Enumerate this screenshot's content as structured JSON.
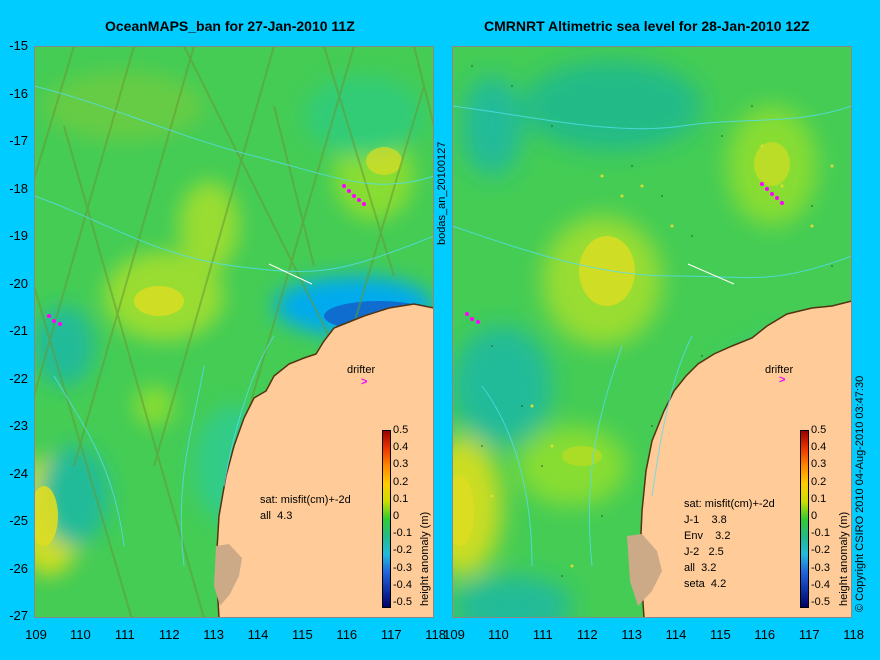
{
  "panels": [
    {
      "title": "OceanMAPS_ban for 27-Jan-2010 11Z",
      "drifter_label": "drifter",
      "legend": [
        "sat: misfit(cm)+-2d",
        "all  4.3"
      ],
      "colorbar_label": "height anomaly (m)",
      "side_label": "bodas_an_20100127"
    },
    {
      "title": "CMRNRT Altimetric sea level  for 28-Jan-2010 12Z",
      "drifter_label": "drifter",
      "legend": [
        "sat: misfit(cm)+-2d",
        "J-1    3.8",
        "Env    3.2",
        "J-2   2.5",
        "all  3.2",
        "seta  4.2"
      ],
      "colorbar_label": "height anomaly (m)",
      "side_label": "© Copyright CSIRO 2010   04-Aug-2010 03:47:30"
    }
  ],
  "y_ticks": [
    "-15",
    "-16",
    "-17",
    "-18",
    "-19",
    "-20",
    "-21",
    "-22",
    "-23",
    "-24",
    "-25",
    "-26",
    "-27"
  ],
  "x_ticks": [
    "109",
    "110",
    "111",
    "112",
    "113",
    "114",
    "115",
    "116",
    "117",
    "118"
  ],
  "colorbar_ticks": [
    "0.5",
    "0.4",
    "0.3",
    "0.2",
    "0.1",
    "0",
    "-0.1",
    "-0.2",
    "-0.3",
    "-0.4",
    "-0.5"
  ],
  "colors": {
    "background": "#00ccff",
    "land": "#ffcc99",
    "ocean_base": "#33cc66",
    "drifter": "#ff00ff"
  }
}
